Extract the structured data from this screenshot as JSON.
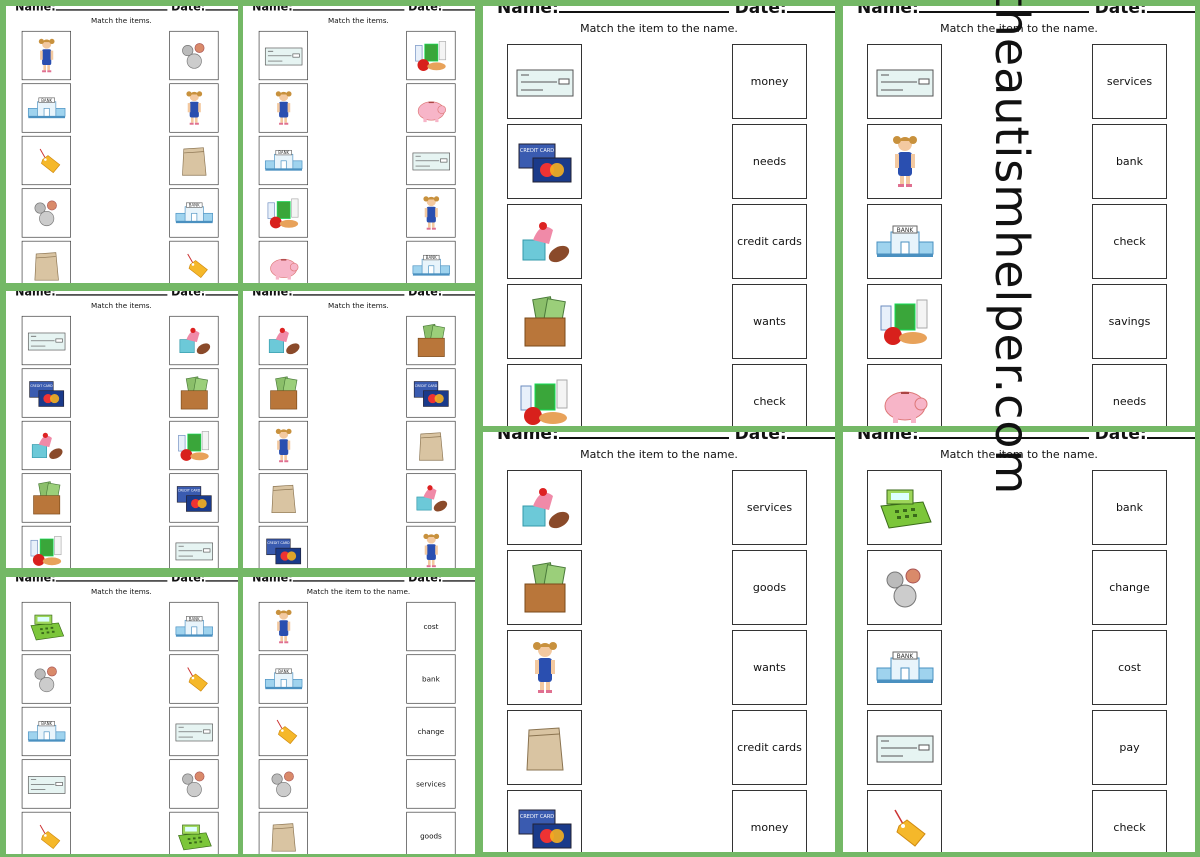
{
  "header": {
    "name_label": "Name:",
    "date_label": "Date:"
  },
  "colors": {
    "background": "#74b866",
    "paper": "#ffffff"
  },
  "panels": [
    {
      "title": "Match the items.",
      "left": [
        "girl",
        "bank",
        "price-tag",
        "coins",
        "paper-bag"
      ],
      "right_type": "icons",
      "right": [
        "coins",
        "girl",
        "paper-bag",
        "bank",
        "price-tag"
      ]
    },
    {
      "title": "Match the items.",
      "left": [
        "check",
        "girl",
        "bank",
        "groceries",
        "piggy-bank"
      ],
      "right_type": "icons",
      "right": [
        "groceries",
        "piggy-bank",
        "check",
        "girl",
        "bank"
      ]
    },
    {
      "title": "Match the items.",
      "left": [
        "check",
        "credit-cards",
        "toys",
        "wallet",
        "groceries"
      ],
      "right_type": "icons",
      "right": [
        "toys",
        "wallet",
        "groceries",
        "credit-cards",
        "check"
      ]
    },
    {
      "title": "Match the items.",
      "left": [
        "toys",
        "wallet",
        "girl",
        "paper-bag",
        "credit-cards"
      ],
      "right_type": "icons",
      "right": [
        "wallet",
        "credit-cards",
        "paper-bag",
        "toys",
        "girl"
      ]
    },
    {
      "title": "Match the items.",
      "left": [
        "cash-register",
        "coins",
        "bank",
        "check",
        "price-tag"
      ],
      "right_type": "icons",
      "right": [
        "bank",
        "price-tag",
        "check",
        "coins",
        "cash-register"
      ]
    },
    {
      "title": "Match the item to the name.",
      "left": [
        "girl",
        "bank",
        "price-tag",
        "coins",
        "paper-bag"
      ],
      "right_type": "words",
      "right": [
        "cost",
        "bank",
        "change",
        "services",
        "goods"
      ]
    },
    {
      "title": "Match the item to the name.",
      "left": [
        "check",
        "credit-cards",
        "toys",
        "wallet",
        "groceries"
      ],
      "right_type": "words",
      "right": [
        "money",
        "needs",
        "credit cards",
        "wants",
        "check"
      ]
    },
    {
      "title": "Match the item to the name.",
      "left": [
        "check",
        "girl",
        "bank",
        "groceries",
        "piggy-bank"
      ],
      "right_type": "words",
      "right": [
        "services",
        "bank",
        "check",
        "savings",
        "needs"
      ]
    },
    {
      "title": "Match the item to the name.",
      "left": [
        "toys",
        "wallet",
        "girl",
        "paper-bag",
        "credit-cards"
      ],
      "right_type": "words",
      "right": [
        "services",
        "goods",
        "wants",
        "credit cards",
        "money"
      ]
    },
    {
      "title": "Match the item to the name.",
      "left": [
        "cash-register",
        "coins",
        "bank",
        "check",
        "price-tag"
      ],
      "right_type": "words",
      "right": [
        "bank",
        "change",
        "cost",
        "pay",
        "check"
      ]
    }
  ],
  "watermark": "theautismhelper.com"
}
